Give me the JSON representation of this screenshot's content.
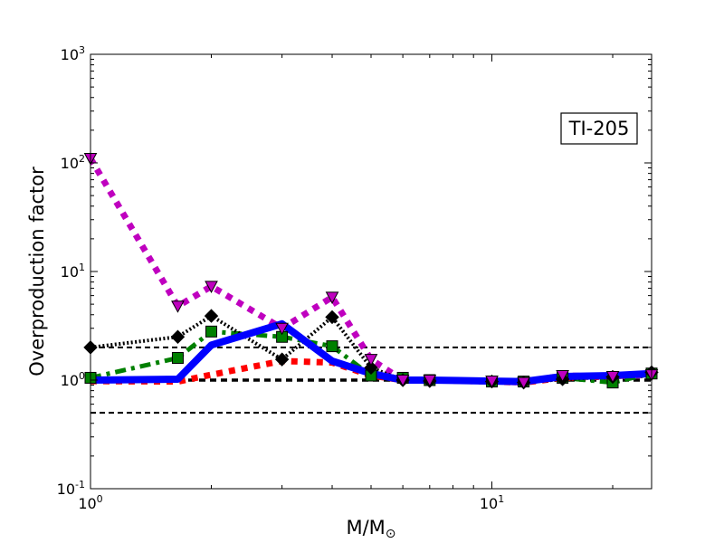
{
  "chart_data": {
    "type": "line",
    "xscale": "log",
    "yscale": "log",
    "xlim": [
      1.0,
      25.0
    ],
    "ylim": [
      0.1,
      1000
    ],
    "xlabel": "M/M",
    "xlabel_sub": "⊙",
    "ylabel": "Overproduction factor",
    "annotation": "TI-205",
    "x_ticks": [
      {
        "value": 1,
        "base": "10",
        "exp": "0"
      },
      {
        "value": 10,
        "base": "10",
        "exp": "1"
      }
    ],
    "y_ticks": [
      {
        "value": 0.1,
        "base": "10",
        "exp": "-1"
      },
      {
        "value": 1,
        "base": "10",
        "exp": "0"
      },
      {
        "value": 10,
        "base": "10",
        "exp": "1"
      },
      {
        "value": 100,
        "base": "10",
        "exp": "2"
      },
      {
        "value": 1000,
        "base": "10",
        "exp": "3"
      }
    ],
    "reference_lines": [
      0.5,
      1.0,
      2.0
    ],
    "series": [
      {
        "color": "#ff0000",
        "style": "dotted",
        "marker": "none",
        "points": [
          [
            1.0,
            0.98
          ],
          [
            1.65,
            0.97
          ],
          [
            2.0,
            1.12
          ],
          [
            3.0,
            1.5
          ],
          [
            4.0,
            1.45
          ],
          [
            5.0,
            1.1
          ],
          [
            6.0,
            1.0
          ],
          [
            7.0,
            1.0
          ],
          [
            10.0,
            0.97
          ],
          [
            12.0,
            0.95
          ],
          [
            15.0,
            1.05
          ],
          [
            20.0,
            1.08
          ],
          [
            25.0,
            1.15
          ]
        ]
      },
      {
        "color": "#008000",
        "style": "dashdot",
        "marker": "square",
        "points": [
          [
            1.0,
            1.05
          ],
          [
            1.65,
            1.6
          ],
          [
            2.0,
            2.8
          ],
          [
            3.0,
            2.5
          ],
          [
            4.0,
            2.05
          ],
          [
            5.0,
            1.1
          ],
          [
            6.0,
            1.05
          ],
          [
            7.0,
            1.0
          ],
          [
            10.0,
            0.97
          ],
          [
            12.0,
            0.97
          ],
          [
            15.0,
            1.05
          ],
          [
            20.0,
            0.95
          ],
          [
            25.0,
            1.15
          ]
        ]
      },
      {
        "color": "#000000",
        "style": "finedot",
        "marker": "diamond",
        "points": [
          [
            1.0,
            2.0
          ],
          [
            1.65,
            2.5
          ],
          [
            2.0,
            3.9
          ],
          [
            3.0,
            1.55
          ],
          [
            4.0,
            3.8
          ],
          [
            5.0,
            1.3
          ],
          [
            6.0,
            1.0
          ],
          [
            7.0,
            0.98
          ],
          [
            10.0,
            0.97
          ],
          [
            12.0,
            0.95
          ],
          [
            15.0,
            1.02
          ],
          [
            20.0,
            1.07
          ],
          [
            25.0,
            1.18
          ]
        ]
      },
      {
        "color": "#0000ff",
        "style": "solid",
        "marker": "none",
        "points": [
          [
            1.0,
            1.0
          ],
          [
            1.65,
            1.02
          ],
          [
            2.0,
            2.1
          ],
          [
            3.0,
            3.3
          ],
          [
            4.0,
            1.5
          ],
          [
            5.0,
            1.15
          ],
          [
            6.0,
            1.0
          ],
          [
            7.0,
            1.0
          ],
          [
            10.0,
            0.98
          ],
          [
            12.0,
            0.97
          ],
          [
            15.0,
            1.08
          ],
          [
            20.0,
            1.1
          ],
          [
            25.0,
            1.15
          ]
        ]
      },
      {
        "color": "#bf00bf",
        "style": "dotted",
        "marker": "triangle-down",
        "points": [
          [
            1.0,
            110
          ],
          [
            1.65,
            4.8
          ],
          [
            2.0,
            7.3
          ],
          [
            3.0,
            3.0
          ],
          [
            4.0,
            5.8
          ],
          [
            5.0,
            1.55
          ],
          [
            6.0,
            1.0
          ],
          [
            7.0,
            1.0
          ],
          [
            10.0,
            0.98
          ],
          [
            12.0,
            0.95
          ],
          [
            15.0,
            1.1
          ],
          [
            20.0,
            1.08
          ],
          [
            25.0,
            1.12
          ]
        ]
      }
    ]
  }
}
